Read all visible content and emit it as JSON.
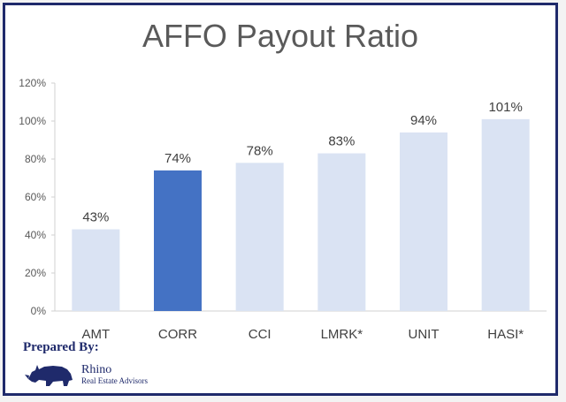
{
  "chart_data": {
    "type": "bar",
    "title": "AFFO Payout Ratio",
    "categories": [
      "AMT",
      "CORR",
      "CCI",
      "LMRK*",
      "UNIT",
      "HASI*"
    ],
    "values": [
      43,
      74,
      78,
      83,
      94,
      101
    ],
    "value_labels": [
      "43%",
      "74%",
      "78%",
      "83%",
      "94%",
      "101%"
    ],
    "highlight_index": 1,
    "ylim": [
      0,
      120
    ],
    "yticks": [
      "0%",
      "20%",
      "40%",
      "60%",
      "80%",
      "100%",
      "120%"
    ],
    "grid": false,
    "colors": {
      "bar": "#dae3f3",
      "highlight": "#4472c4"
    }
  },
  "branding": {
    "prepared_by": "Prepared By:",
    "brand": "Rhino",
    "tagline": "Real Estate Advisors",
    "logo_icon": "rhino-logo-icon"
  }
}
